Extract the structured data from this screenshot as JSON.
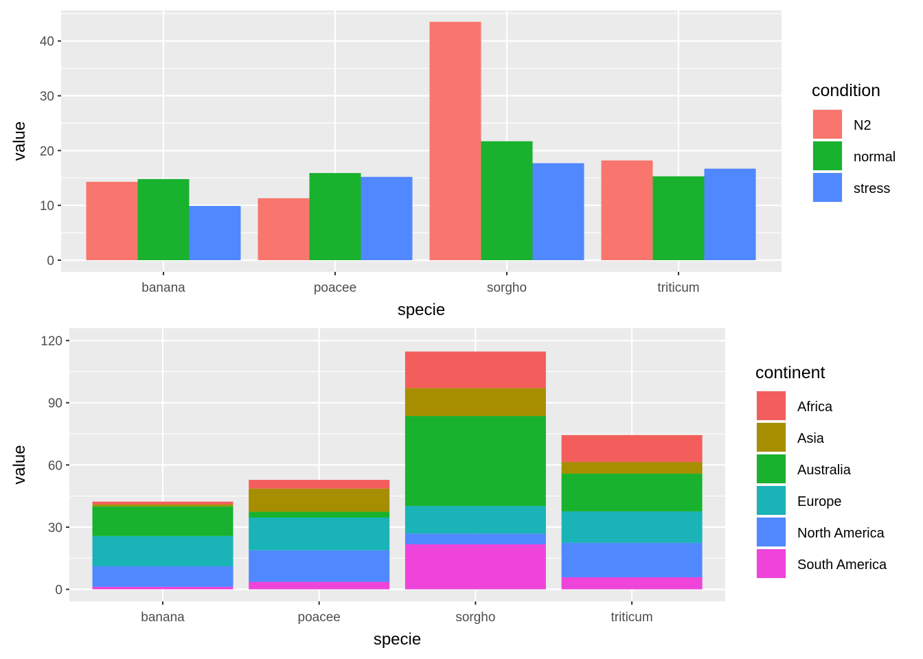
{
  "chart_data": [
    {
      "type": "bar",
      "position": "dodge",
      "xlabel": "specie",
      "ylabel": "value",
      "categories": [
        "banana",
        "poacee",
        "sorgho",
        "triticum"
      ],
      "ylim": [
        -2.13,
        45.6
      ],
      "yticks": [
        0,
        10,
        20,
        30,
        40
      ],
      "grid": true,
      "legend": {
        "title": "condition",
        "placement": "right"
      },
      "series": [
        {
          "name": "N2",
          "color": "#F8766D",
          "values": [
            14.3,
            11.3,
            43.5,
            18.2
          ]
        },
        {
          "name": "normal",
          "color": "#19B22E",
          "values": [
            14.8,
            15.9,
            21.7,
            15.3
          ]
        },
        {
          "name": "stress",
          "color": "#5088FF",
          "values": [
            9.9,
            15.2,
            17.7,
            16.7
          ]
        }
      ]
    },
    {
      "type": "bar",
      "position": "stack",
      "xlabel": "specie",
      "ylabel": "value",
      "categories": [
        "banana",
        "poacee",
        "sorgho",
        "triticum"
      ],
      "ylim": [
        -5.8,
        126
      ],
      "yticks": [
        0,
        30,
        60,
        90,
        120
      ],
      "grid": true,
      "legend": {
        "title": "continent",
        "placement": "right"
      },
      "series": [
        {
          "name": "Africa",
          "color": "#F35E5C",
          "values": [
            1.3,
            4.2,
            17.6,
            13.0
          ]
        },
        {
          "name": "Asia",
          "color": "#A68E00",
          "values": [
            1.0,
            11.2,
            13.5,
            5.6
          ]
        },
        {
          "name": "Australia",
          "color": "#19B22E",
          "values": [
            14.3,
            2.8,
            43.4,
            18.2
          ]
        },
        {
          "name": "Europe",
          "color": "#1AB3B8",
          "values": [
            14.6,
            15.8,
            13.3,
            15.2
          ]
        },
        {
          "name": "North America",
          "color": "#5088FF",
          "values": [
            9.9,
            15.2,
            5.2,
            16.6
          ]
        },
        {
          "name": "South America",
          "color": "#EE44DA",
          "values": [
            1.2,
            3.6,
            21.7,
            5.8
          ]
        }
      ]
    }
  ]
}
